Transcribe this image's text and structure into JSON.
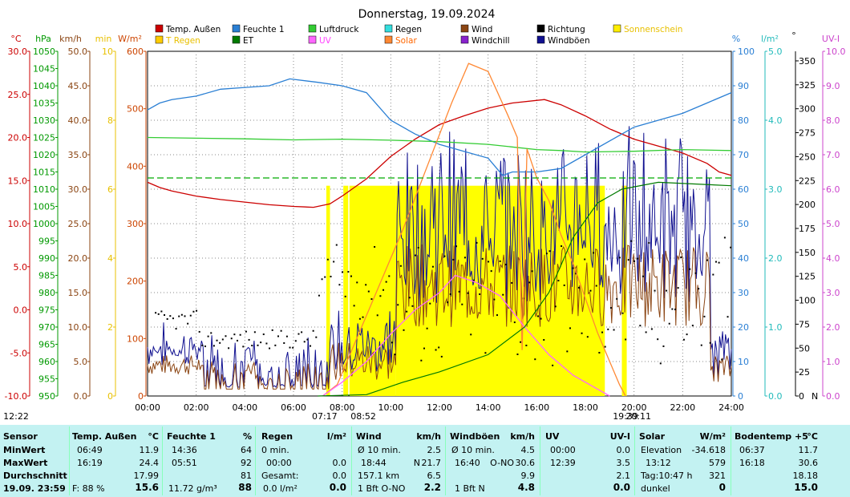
{
  "chart_data": {
    "type": "line",
    "title": "Donnerstag, 19.09.2024",
    "x_labels": [
      "00:00",
      "02:00",
      "04:00",
      "06:00",
      "08:00",
      "10:00",
      "12:00",
      "14:00",
      "16:00",
      "18:00",
      "20:00",
      "22:00",
      "24:00"
    ],
    "x_range": [
      0,
      24
    ],
    "legend": [
      {
        "label": "Temp. Außen",
        "color": "#cc0000"
      },
      {
        "label": "T Regen",
        "color": "#ffcc00"
      },
      {
        "label": "Feuchte 1",
        "color": "#2a7fd4"
      },
      {
        "label": "ET",
        "color": "#007a00"
      },
      {
        "label": "Luftdruck",
        "color": "#33cc33"
      },
      {
        "label": "UV",
        "color": "#ff66ff"
      },
      {
        "label": "Regen",
        "color": "#33dddd"
      },
      {
        "label": "Solar",
        "color": "#ff8833"
      },
      {
        "label": "Wind",
        "color": "#8b4513"
      },
      {
        "label": "Windchill",
        "color": "#8822cc"
      },
      {
        "label": "Richtung",
        "color": "#000000"
      },
      {
        "label": "Windböen",
        "color": "#101090"
      },
      {
        "label": "Sonnenschein",
        "color": "#ffee00"
      }
    ],
    "axes": {
      "temp": {
        "unit": "°C",
        "color": "#cc0000",
        "ticks": [
          "30.0",
          "25.0",
          "20.0",
          "15.0",
          "10.0",
          "5.0",
          "0.0",
          "-5.0",
          "-10.0"
        ]
      },
      "pressure": {
        "unit": "hPa",
        "color": "#009900",
        "ticks": [
          "1050",
          "1045",
          "1040",
          "1035",
          "1030",
          "1025",
          "1020",
          "1015",
          "1010",
          "1005",
          "1000",
          "995",
          "990",
          "985",
          "980",
          "975",
          "970",
          "965",
          "960",
          "955",
          "950"
        ]
      },
      "wind": {
        "unit": "km/h",
        "color": "#8b4513",
        "ticks": [
          "50.0",
          "45.0",
          "40.0",
          "35.0",
          "30.0",
          "25.0",
          "20.0",
          "15.0",
          "10.0",
          "5.0",
          "0.0"
        ]
      },
      "sunshine": {
        "unit": "min",
        "color": "#e8c000",
        "ticks": [
          "10",
          "8",
          "6",
          "4",
          "2",
          "0"
        ]
      },
      "solar": {
        "unit": "W/m²",
        "color": "#cc4400",
        "ticks": [
          "600",
          "500",
          "400",
          "300",
          "200",
          "100",
          "0"
        ]
      },
      "humidity": {
        "unit": "%",
        "color": "#2a7fd4",
        "ticks": [
          "100",
          "90",
          "80",
          "70",
          "60",
          "50",
          "40",
          "30",
          "20",
          "10",
          "0"
        ]
      },
      "rain": {
        "unit": "l/m²",
        "color": "#22bbbb",
        "ticks": [
          "5.0",
          "4.0",
          "3.0",
          "2.0",
          "1.0",
          "0.0"
        ]
      },
      "direction": {
        "unit": "°",
        "color": "#000000",
        "ticks": [
          "350",
          "325",
          "300",
          "275",
          "250",
          "225",
          "200",
          "175",
          "150",
          "125",
          "100",
          "75",
          "50",
          "25",
          "0"
        ],
        "n_label": "N"
      },
      "uv": {
        "unit": "UV-I",
        "color": "#cc44cc",
        "ticks": [
          "10.0",
          "9.0",
          "8.0",
          "7.0",
          "6.0",
          "5.0",
          "4.0",
          "3.0",
          "2.0",
          "1.0",
          "0.0"
        ]
      }
    },
    "series": [
      {
        "name": "Temp. Außen",
        "axis": "temp",
        "color": "#cc0000",
        "points": [
          [
            0,
            14.8
          ],
          [
            0.5,
            14.2
          ],
          [
            1,
            13.8
          ],
          [
            2,
            13.2
          ],
          [
            3,
            12.8
          ],
          [
            4,
            12.5
          ],
          [
            5,
            12.2
          ],
          [
            6,
            12.0
          ],
          [
            6.82,
            11.9
          ],
          [
            7.5,
            12.3
          ],
          [
            8,
            13.2
          ],
          [
            9,
            15.2
          ],
          [
            10,
            17.8
          ],
          [
            11,
            19.8
          ],
          [
            12,
            21.5
          ],
          [
            13,
            22.5
          ],
          [
            14,
            23.4
          ],
          [
            15,
            24.0
          ],
          [
            16.32,
            24.4
          ],
          [
            17,
            23.8
          ],
          [
            18,
            22.5
          ],
          [
            19,
            21.0
          ],
          [
            20,
            19.8
          ],
          [
            21,
            19.0
          ],
          [
            22,
            18.2
          ],
          [
            23,
            17.0
          ],
          [
            23.5,
            16.0
          ],
          [
            24,
            15.6
          ]
        ]
      },
      {
        "name": "Feuchte 1",
        "axis": "humidity",
        "color": "#2a7fd4",
        "points": [
          [
            0,
            83
          ],
          [
            0.5,
            85
          ],
          [
            1,
            86
          ],
          [
            2,
            87
          ],
          [
            3,
            89
          ],
          [
            4,
            89.5
          ],
          [
            5,
            90
          ],
          [
            5.85,
            92
          ],
          [
            7,
            91
          ],
          [
            8,
            90
          ],
          [
            9,
            88
          ],
          [
            10,
            80
          ],
          [
            11,
            76
          ],
          [
            12,
            73
          ],
          [
            13,
            71
          ],
          [
            14,
            69
          ],
          [
            14.6,
            64
          ],
          [
            15,
            65
          ],
          [
            16,
            65
          ],
          [
            17,
            66
          ],
          [
            18,
            70
          ],
          [
            19,
            74
          ],
          [
            20,
            78
          ],
          [
            21,
            80
          ],
          [
            22,
            82
          ],
          [
            23,
            85
          ],
          [
            24,
            88
          ]
        ]
      },
      {
        "name": "Luftdruck",
        "axis": "pressure",
        "color": "#33cc33",
        "points": [
          [
            0,
            1025
          ],
          [
            2,
            1024.8
          ],
          [
            4,
            1024.6
          ],
          [
            6,
            1024.3
          ],
          [
            8,
            1024.5
          ],
          [
            10,
            1024.2
          ],
          [
            12,
            1023.8
          ],
          [
            14,
            1023.0
          ],
          [
            16,
            1021.5
          ],
          [
            17,
            1021.2
          ],
          [
            18,
            1020.8
          ],
          [
            20,
            1021.0
          ],
          [
            22,
            1021.5
          ],
          [
            24,
            1021.2
          ]
        ]
      },
      {
        "name": "Solar",
        "axis": "solar",
        "color": "#ff8833",
        "points": [
          [
            7.2,
            0
          ],
          [
            7.8,
            20
          ],
          [
            8.5,
            90
          ],
          [
            9.5,
            190
          ],
          [
            10.5,
            290
          ],
          [
            11.5,
            400
          ],
          [
            12.5,
            510
          ],
          [
            13.2,
            579
          ],
          [
            14,
            565
          ],
          [
            14.8,
            490
          ],
          [
            15.2,
            450
          ],
          [
            15.4,
            80
          ],
          [
            15.6,
            430
          ],
          [
            16,
            380
          ],
          [
            16.5,
            340
          ],
          [
            17,
            280
          ],
          [
            17.5,
            230
          ],
          [
            18,
            170
          ],
          [
            18.5,
            110
          ],
          [
            19,
            60
          ],
          [
            19.4,
            20
          ],
          [
            19.65,
            0
          ]
        ]
      },
      {
        "name": "UV",
        "axis": "uv",
        "color": "#ff66ff",
        "points": [
          [
            7.2,
            0
          ],
          [
            8,
            0.4
          ],
          [
            9,
            1.0
          ],
          [
            10,
            1.8
          ],
          [
            11,
            2.5
          ],
          [
            12,
            3.0
          ],
          [
            12.65,
            3.5
          ],
          [
            13.5,
            3.3
          ],
          [
            14.5,
            2.9
          ],
          [
            15.5,
            2.0
          ],
          [
            16.5,
            1.2
          ],
          [
            17.5,
            0.6
          ],
          [
            18.5,
            0.2
          ],
          [
            19,
            0
          ]
        ]
      },
      {
        "name": "ET",
        "axis": "rain",
        "color": "#007a00",
        "points": [
          [
            7,
            0
          ],
          [
            9,
            0.02
          ],
          [
            10.5,
            0.2
          ],
          [
            12,
            0.35
          ],
          [
            14,
            0.6
          ],
          [
            15.5,
            1.0
          ],
          [
            16.5,
            1.5
          ],
          [
            17.5,
            2.3
          ],
          [
            18.5,
            2.8
          ],
          [
            19.5,
            3.0
          ],
          [
            21,
            3.1
          ],
          [
            24,
            3.05
          ]
        ]
      },
      {
        "name": "Bodentemp",
        "axis": "temp",
        "color": "#00aa00",
        "dash": true,
        "points": [
          [
            0,
            15.3
          ],
          [
            24,
            15.3
          ]
        ]
      }
    ],
    "sunshine_blocks": [
      [
        7.35,
        7.5
      ],
      [
        8.05,
        8.25
      ],
      [
        8.3,
        10.2
      ],
      [
        10.2,
        18.8
      ],
      [
        19.5,
        19.7
      ]
    ],
    "sunshine_level_min": 6.1,
    "wind_active_range": [
      10.2,
      23.2
    ],
    "annotations": [
      {
        "text": "12:22",
        "x": 0.3
      },
      {
        "text": "07:17",
        "x": 7.28
      },
      {
        "text": "08:52",
        "x": 8.87
      },
      {
        "text": "19:39",
        "x": 19.65
      },
      {
        "text": "20:11",
        "x": 20.18
      }
    ]
  },
  "stats": {
    "sensor": {
      "h": "Sensor",
      "min": "MinWert",
      "max": "MaxWert",
      "avg": "Durchschnitt",
      "now": "19.09. 23:59"
    },
    "temp": {
      "h": "Temp. Außen",
      "u": "°C",
      "min_t": "06:49",
      "min_v": "11.9",
      "max_t": "16:19",
      "max_v": "24.4",
      "avg": "17.99",
      "now_l": "F: 88 %",
      "now_v": "15.6"
    },
    "hum": {
      "h": "Feuchte 1",
      "u": "%",
      "min_t": "14:36",
      "min_v": "64",
      "max_t": "05:51",
      "max_v": "92",
      "avg": "81",
      "now_l": "11.72 g/m³",
      "now_v": "88"
    },
    "rain": {
      "h": "Regen",
      "u": "l/m²",
      "min_t": "0 min.",
      "min_v": "",
      "max_t": "00:00",
      "max_v": "0.0",
      "avg_l": "Gesamt:",
      "avg": "0.0",
      "now_l": "0.0 l/m²",
      "now_v": "0.0"
    },
    "wind": {
      "h": "Wind",
      "u": "km/h",
      "min_t": "Ø 10 min.",
      "min_v": "2.5",
      "max_t": "18:44",
      "max_m": "N",
      "max_v": "21.7",
      "avg_l": "157.1 km",
      "avg": "6.5",
      "now_l": "1 Bft O-NO",
      "now_v": "2.2"
    },
    "gust": {
      "h": "Windböen",
      "u": "km/h",
      "min_t": "Ø 10 min.",
      "min_v": "4.5",
      "max_t": "16:40",
      "max_m": "O-NO",
      "max_v": "30.6",
      "avg": "9.9",
      "now_l": "1 Bft N",
      "now_v": "4.8"
    },
    "uv": {
      "h": "UV",
      "u": "UV-I",
      "min_t": "00:00",
      "min_v": "0.0",
      "max_t": "12:39",
      "max_v": "3.5",
      "avg": "2.1",
      "now_v": "0.0"
    },
    "solar": {
      "h": "Solar",
      "u": "W/m²",
      "min_t": "Elevation",
      "min_v": "-34.618",
      "max_t": "13:12",
      "max_v": "579",
      "avg_l": "Tag:10:47 h",
      "avg": "321",
      "now_l": "dunkel",
      "now_v": "0"
    },
    "soil": {
      "h": "Bodentemp +5",
      "u": "°C",
      "min_t": "06:37",
      "min_v": "11.7",
      "max_t": "16:18",
      "max_v": "30.6",
      "avg": "18.18",
      "now_v": "15.0"
    }
  }
}
